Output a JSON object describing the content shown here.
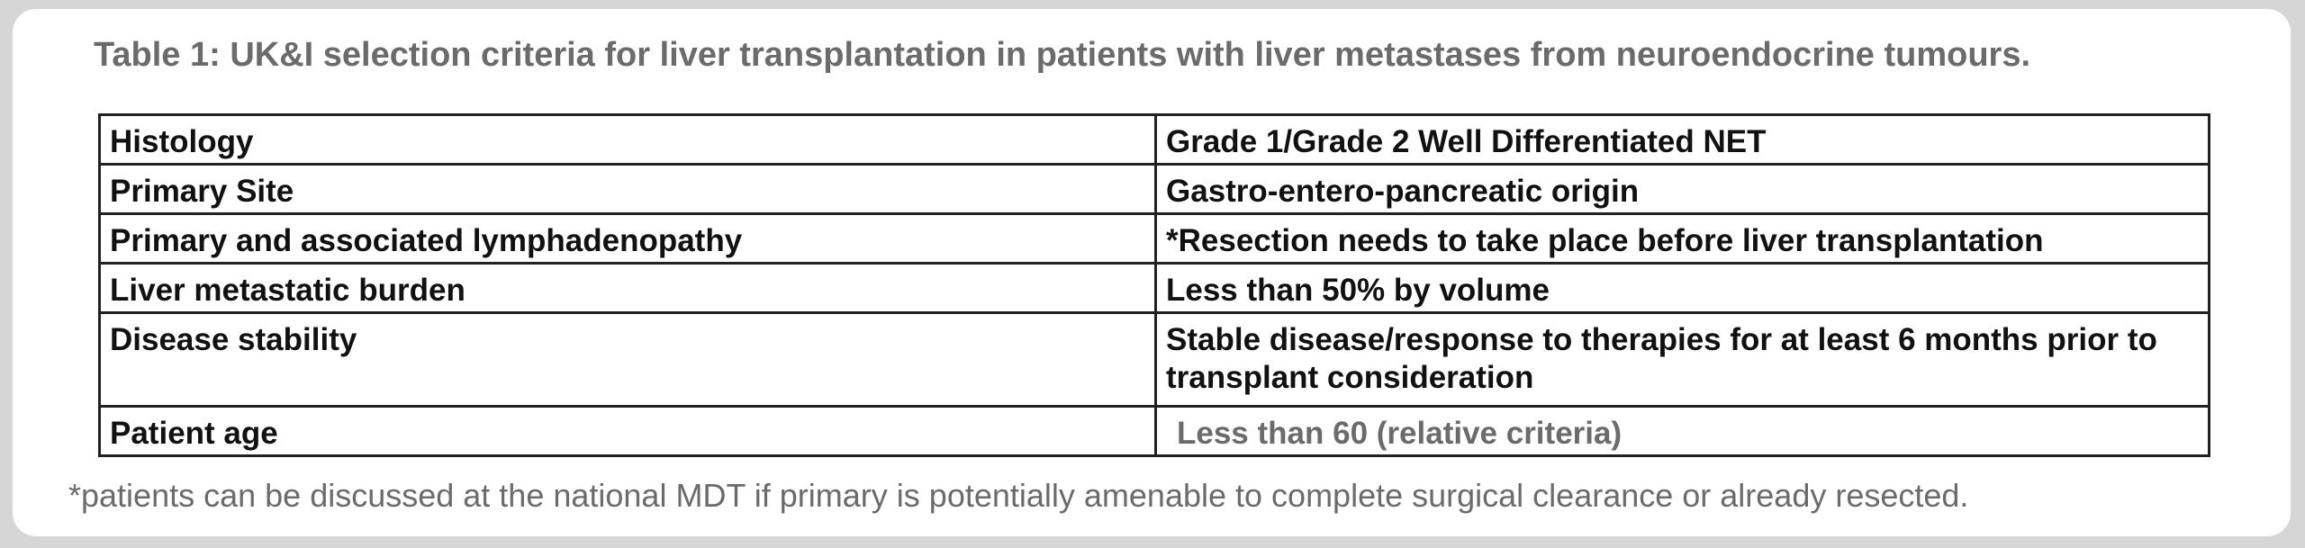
{
  "caption": "Table 1: UK&I selection criteria for liver transplantation in patients with liver metastases from neuroendocrine tumours.",
  "rows": [
    {
      "criterion": "Histology",
      "requirement": "Grade 1/Grade 2 Well Differentiated NET"
    },
    {
      "criterion": "Primary Site",
      "requirement": "Gastro-entero-pancreatic origin"
    },
    {
      "criterion": "Primary and associated lymphadenopathy",
      "requirement": "*Resection needs to take place before liver transplantation"
    },
    {
      "criterion": "Liver metastatic burden",
      "requirement": "Less than 50% by volume"
    },
    {
      "criterion": "Disease stability",
      "requirement": "Stable disease/response to therapies for at least 6 months prior to transplant consideration"
    },
    {
      "criterion": "Patient age",
      "requirement": "Less than 60 (relative criteria)"
    }
  ],
  "footnote": "*patients can be discussed at the national MDT if primary is potentially amenable to complete surgical clearance or already resected.",
  "colors": {
    "background": "#d6d6d6",
    "card": "#ffffff",
    "caption_text": "#6b6b6b",
    "table_text": "#111111",
    "table_border": "#222222"
  }
}
